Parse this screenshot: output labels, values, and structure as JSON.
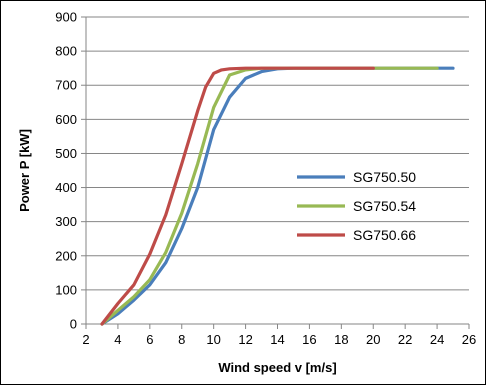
{
  "chart_data": {
    "type": "line",
    "title": "",
    "xlabel": "Wind speed v [m/s]",
    "ylabel": "Power P [kW]",
    "xlim": [
      2,
      26
    ],
    "ylim": [
      0,
      900
    ],
    "xticks": [
      2,
      4,
      6,
      8,
      10,
      12,
      14,
      16,
      18,
      20,
      22,
      24,
      26
    ],
    "yticks": [
      0,
      100,
      200,
      300,
      400,
      500,
      600,
      700,
      800,
      900
    ],
    "grid": "horizontal",
    "legend_position": "right",
    "series": [
      {
        "name": "SG750.50",
        "color": "#4a7ebb",
        "x": [
          3,
          4,
          5,
          6,
          7,
          8,
          9,
          10,
          11,
          12,
          13,
          14,
          15,
          16,
          17,
          18,
          19,
          20,
          21,
          22,
          23,
          24,
          25
        ],
        "y": [
          0,
          30,
          70,
          115,
          180,
          280,
          400,
          570,
          665,
          720,
          740,
          748,
          750,
          750,
          750,
          750,
          750,
          750,
          750,
          750,
          750,
          750,
          750
        ]
      },
      {
        "name": "SG750.54",
        "color": "#98b954",
        "x": [
          3,
          4,
          5,
          6,
          7,
          8,
          9,
          10,
          11,
          12,
          13,
          14,
          15,
          16,
          17,
          18,
          19,
          20,
          21,
          22,
          23,
          24
        ],
        "y": [
          0,
          40,
          80,
          130,
          210,
          325,
          470,
          635,
          730,
          745,
          750,
          750,
          750,
          750,
          750,
          750,
          750,
          750,
          750,
          750,
          750,
          750
        ]
      },
      {
        "name": "SG750.66",
        "color": "#be4b48",
        "x": [
          3,
          4,
          5,
          6,
          7,
          8,
          9,
          9.5,
          10,
          10.5,
          11,
          12,
          13,
          14,
          15,
          16,
          17,
          18,
          19,
          20
        ],
        "y": [
          0,
          60,
          115,
          205,
          320,
          470,
          625,
          695,
          735,
          745,
          748,
          750,
          750,
          750,
          750,
          750,
          750,
          750,
          750,
          750
        ]
      }
    ]
  }
}
